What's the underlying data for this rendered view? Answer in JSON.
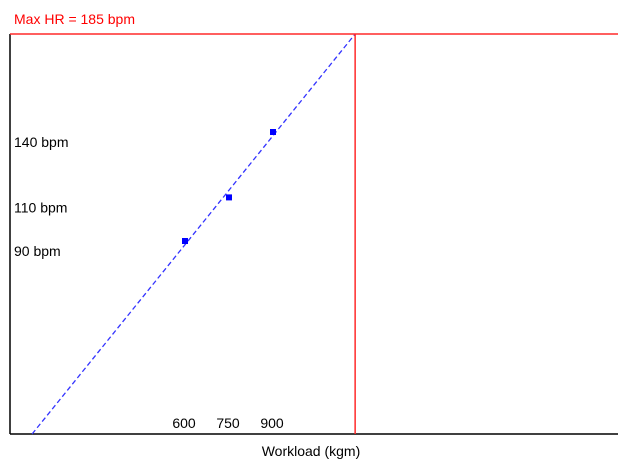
{
  "chart_data": {
    "type": "scatter",
    "title": "",
    "xlabel": "Workload (kgm)",
    "ylabel": "",
    "max_hr_label": "Max HR = 185 bpm",
    "max_hr": 185,
    "points": [
      {
        "x": 600,
        "y": 90
      },
      {
        "x": 750,
        "y": 110
      },
      {
        "x": 900,
        "y": 140
      }
    ],
    "x_tick_labels": [
      {
        "value": 600,
        "label": "600"
      },
      {
        "value": 750,
        "label": "750"
      },
      {
        "value": 900,
        "label": "900"
      }
    ],
    "y_tick_labels": [
      {
        "value": 90,
        "label": "90 bpm"
      },
      {
        "value": 110,
        "label": "110 bpm"
      },
      {
        "value": 140,
        "label": "140 bpm"
      }
    ],
    "trend_line": "dashed",
    "grid": false,
    "colors": {
      "points": "#0000ff",
      "trend_line": "#3333ff",
      "max_hr_line": "#ff2a2a",
      "max_hr_text": "#ff0000",
      "axes": "#000000"
    }
  }
}
